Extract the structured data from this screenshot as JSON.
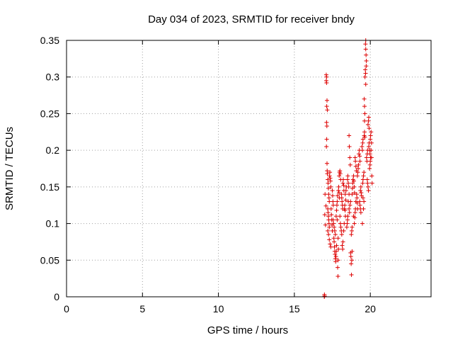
{
  "chart_data": {
    "type": "scatter",
    "title": "Day 034 of 2023, SRMTID for receiver bndy",
    "xlabel": "GPS time / hours",
    "ylabel": "SRMTID / TECUs",
    "xlim": [
      0,
      24
    ],
    "ylim": [
      0,
      0.35
    ],
    "xticks": [
      0,
      5,
      10,
      15,
      20
    ],
    "yticks": [
      0,
      0.05,
      0.1,
      0.15,
      0.2,
      0.25,
      0.3,
      0.35
    ],
    "ytick_labels": [
      "0",
      "0.05",
      "0.1",
      "0.15",
      "0.2",
      "0.25",
      "0.3",
      "0.35"
    ],
    "grid": true,
    "marker": "+",
    "colors": {
      "series": "#dd0000",
      "axis": "#000000",
      "grid": "#a0a0a0"
    },
    "series": [
      {
        "name": "SRMTID",
        "points": [
          [
            16.97,
            0.0
          ],
          [
            16.98,
            0.003
          ],
          [
            16.99,
            0.001
          ],
          [
            17.0,
            0.112
          ],
          [
            17.02,
            0.14
          ],
          [
            17.05,
            0.098
          ],
          [
            17.08,
            0.124
          ],
          [
            17.1,
            0.295
          ],
          [
            17.1,
            0.303
          ],
          [
            17.12,
            0.292
          ],
          [
            17.12,
            0.3
          ],
          [
            17.13,
            0.26
          ],
          [
            17.15,
            0.268
          ],
          [
            17.17,
            0.255
          ],
          [
            17.12,
            0.238
          ],
          [
            17.14,
            0.233
          ],
          [
            17.13,
            0.215
          ],
          [
            17.11,
            0.205
          ],
          [
            17.15,
            0.182
          ],
          [
            17.16,
            0.172
          ],
          [
            17.17,
            0.168
          ],
          [
            17.2,
            0.16
          ],
          [
            17.22,
            0.155
          ],
          [
            17.24,
            0.148
          ],
          [
            17.26,
            0.14
          ],
          [
            17.28,
            0.135
          ],
          [
            17.3,
            0.13
          ],
          [
            17.2,
            0.12
          ],
          [
            17.22,
            0.115
          ],
          [
            17.24,
            0.11
          ],
          [
            17.26,
            0.105
          ],
          [
            17.28,
            0.1
          ],
          [
            17.3,
            0.095
          ],
          [
            17.32,
            0.165
          ],
          [
            17.34,
            0.17
          ],
          [
            17.36,
            0.162
          ],
          [
            17.38,
            0.158
          ],
          [
            17.4,
            0.15
          ],
          [
            17.2,
            0.09
          ],
          [
            17.25,
            0.085
          ],
          [
            17.3,
            0.078
          ],
          [
            17.35,
            0.072
          ],
          [
            17.4,
            0.068
          ],
          [
            17.42,
            0.12
          ],
          [
            17.44,
            0.112
          ],
          [
            17.46,
            0.105
          ],
          [
            17.48,
            0.098
          ],
          [
            17.5,
            0.09
          ],
          [
            17.5,
            0.145
          ],
          [
            17.52,
            0.138
          ],
          [
            17.54,
            0.13
          ],
          [
            17.56,
            0.125
          ],
          [
            17.6,
            0.08
          ],
          [
            17.62,
            0.075
          ],
          [
            17.64,
            0.068
          ],
          [
            17.66,
            0.062
          ],
          [
            17.68,
            0.058
          ],
          [
            17.7,
            0.052
          ],
          [
            17.72,
            0.048
          ],
          [
            17.74,
            0.055
          ],
          [
            17.76,
            0.062
          ],
          [
            17.78,
            0.07
          ],
          [
            17.55,
            0.105
          ],
          [
            17.58,
            0.1
          ],
          [
            17.62,
            0.095
          ],
          [
            17.66,
            0.09
          ],
          [
            17.7,
            0.085
          ],
          [
            17.75,
            0.11
          ],
          [
            17.78,
            0.118
          ],
          [
            17.8,
            0.125
          ],
          [
            17.82,
            0.13
          ],
          [
            17.84,
            0.138
          ],
          [
            17.85,
            0.04
          ],
          [
            17.87,
            0.028
          ],
          [
            17.88,
            0.05
          ],
          [
            17.9,
            0.065
          ],
          [
            17.9,
            0.145
          ],
          [
            17.92,
            0.15
          ],
          [
            17.94,
            0.142
          ],
          [
            17.96,
            0.135
          ],
          [
            17.95,
            0.165
          ],
          [
            17.98,
            0.17
          ],
          [
            18.0,
            0.172
          ],
          [
            18.02,
            0.168
          ],
          [
            18.05,
            0.16
          ],
          [
            18.0,
            0.11
          ],
          [
            18.03,
            0.1
          ],
          [
            18.06,
            0.095
          ],
          [
            18.09,
            0.09
          ],
          [
            18.12,
            0.085
          ],
          [
            18.1,
            0.14
          ],
          [
            18.12,
            0.135
          ],
          [
            18.14,
            0.13
          ],
          [
            18.16,
            0.125
          ],
          [
            18.18,
            0.12
          ],
          [
            18.15,
            0.07
          ],
          [
            18.18,
            0.065
          ],
          [
            18.2,
            0.075
          ],
          [
            18.2,
            0.155
          ],
          [
            18.22,
            0.16
          ],
          [
            18.24,
            0.152
          ],
          [
            18.26,
            0.145
          ],
          [
            18.3,
            0.12
          ],
          [
            18.32,
            0.125
          ],
          [
            18.34,
            0.118
          ],
          [
            18.36,
            0.11
          ],
          [
            18.35,
            0.14
          ],
          [
            18.38,
            0.132
          ],
          [
            18.4,
            0.145
          ],
          [
            18.42,
            0.15
          ],
          [
            18.45,
            0.095
          ],
          [
            18.48,
            0.1
          ],
          [
            18.5,
            0.105
          ],
          [
            18.52,
            0.11
          ],
          [
            18.5,
            0.16
          ],
          [
            18.52,
            0.165
          ],
          [
            18.55,
            0.155
          ],
          [
            18.58,
            0.15
          ],
          [
            18.6,
            0.22
          ],
          [
            18.62,
            0.205
          ],
          [
            18.65,
            0.19
          ],
          [
            18.68,
            0.18
          ],
          [
            18.6,
            0.12
          ],
          [
            18.63,
            0.115
          ],
          [
            18.66,
            0.125
          ],
          [
            18.7,
            0.13
          ],
          [
            18.7,
            0.06
          ],
          [
            18.72,
            0.055
          ],
          [
            18.74,
            0.045
          ],
          [
            18.76,
            0.03
          ],
          [
            18.78,
            0.05
          ],
          [
            18.8,
            0.062
          ],
          [
            18.75,
            0.085
          ],
          [
            18.78,
            0.09
          ],
          [
            18.8,
            0.095
          ],
          [
            18.8,
            0.14
          ],
          [
            18.82,
            0.148
          ],
          [
            18.84,
            0.155
          ],
          [
            18.86,
            0.16
          ],
          [
            18.9,
            0.165
          ],
          [
            18.92,
            0.158
          ],
          [
            18.94,
            0.15
          ],
          [
            18.96,
            0.142
          ],
          [
            18.95,
            0.1
          ],
          [
            18.98,
            0.108
          ],
          [
            19.0,
            0.115
          ],
          [
            19.02,
            0.12
          ],
          [
            19.0,
            0.19
          ],
          [
            19.02,
            0.185
          ],
          [
            19.05,
            0.178
          ],
          [
            19.08,
            0.172
          ],
          [
            19.1,
            0.14
          ],
          [
            19.12,
            0.135
          ],
          [
            19.14,
            0.128
          ],
          [
            19.16,
            0.12
          ],
          [
            19.15,
            0.165
          ],
          [
            19.18,
            0.17
          ],
          [
            19.2,
            0.175
          ],
          [
            19.22,
            0.18
          ],
          [
            19.25,
            0.195
          ],
          [
            19.28,
            0.2
          ],
          [
            19.3,
            0.192
          ],
          [
            19.32,
            0.185
          ],
          [
            19.3,
            0.13
          ],
          [
            19.32,
            0.125
          ],
          [
            19.35,
            0.12
          ],
          [
            19.38,
            0.115
          ],
          [
            19.35,
            0.145
          ],
          [
            19.38,
            0.15
          ],
          [
            19.4,
            0.142
          ],
          [
            19.42,
            0.138
          ],
          [
            19.45,
            0.205
          ],
          [
            19.48,
            0.2
          ],
          [
            19.5,
            0.21
          ],
          [
            19.52,
            0.215
          ],
          [
            19.5,
            0.155
          ],
          [
            19.52,
            0.16
          ],
          [
            19.55,
            0.165
          ],
          [
            19.58,
            0.17
          ],
          [
            19.6,
            0.27
          ],
          [
            19.62,
            0.26
          ],
          [
            19.64,
            0.25
          ],
          [
            19.62,
            0.24
          ],
          [
            19.6,
            0.22
          ],
          [
            19.62,
            0.225
          ],
          [
            19.64,
            0.218
          ],
          [
            19.65,
            0.3
          ],
          [
            19.67,
            0.31
          ],
          [
            19.69,
            0.305
          ],
          [
            19.7,
            0.29
          ],
          [
            19.68,
            0.345
          ],
          [
            19.7,
            0.338
          ],
          [
            19.72,
            0.33
          ],
          [
            19.74,
            0.322
          ],
          [
            19.7,
            0.35
          ],
          [
            19.73,
            0.315
          ],
          [
            19.75,
            0.19
          ],
          [
            19.78,
            0.185
          ],
          [
            19.8,
            0.195
          ],
          [
            19.82,
            0.2
          ],
          [
            19.8,
            0.16
          ],
          [
            19.82,
            0.155
          ],
          [
            19.85,
            0.15
          ],
          [
            19.88,
            0.145
          ],
          [
            19.85,
            0.235
          ],
          [
            19.88,
            0.24
          ],
          [
            19.9,
            0.245
          ],
          [
            19.92,
            0.23
          ],
          [
            19.9,
            0.205
          ],
          [
            19.92,
            0.21
          ],
          [
            19.95,
            0.2
          ],
          [
            19.98,
            0.195
          ],
          [
            19.95,
            0.175
          ],
          [
            19.98,
            0.18
          ],
          [
            20.0,
            0.185
          ],
          [
            20.02,
            0.19
          ],
          [
            20.0,
            0.215
          ],
          [
            20.02,
            0.22
          ],
          [
            20.05,
            0.225
          ],
          [
            20.08,
            0.21
          ],
          [
            20.05,
            0.2
          ],
          [
            20.08,
            0.19
          ],
          [
            20.1,
            0.165
          ],
          [
            20.12,
            0.155
          ],
          [
            19.55,
            0.12
          ],
          [
            19.58,
            0.13
          ],
          [
            19.52,
            0.135
          ],
          [
            19.48,
            0.1
          ],
          [
            17.82,
            0.105
          ],
          [
            17.88,
            0.08
          ],
          [
            18.25,
            0.09
          ],
          [
            18.28,
            0.1
          ],
          [
            18.55,
            0.13
          ],
          [
            18.6,
            0.14
          ],
          [
            18.9,
            0.11
          ],
          [
            19.05,
            0.13
          ]
        ]
      }
    ]
  }
}
